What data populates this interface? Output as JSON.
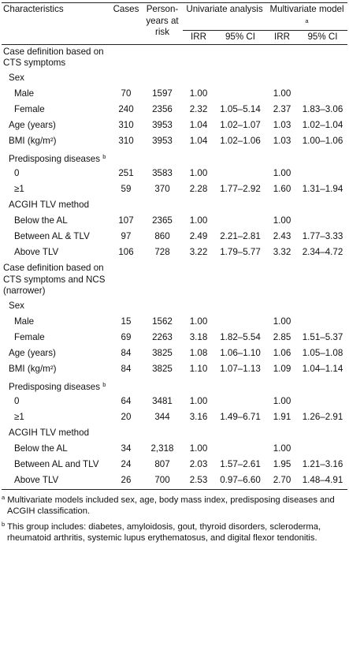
{
  "table": {
    "header": {
      "characteristics": "Characteristics",
      "cases": "Cases",
      "person_years": "Person-years at risk",
      "univariate": "Univariate analysis",
      "multivariate": "Multivariate model",
      "multivariate_note": "a",
      "irr_1": "IRR",
      "ci_1": "95% CI",
      "irr_2": "IRR",
      "ci_2": "95% CI"
    },
    "rows": [
      {
        "label": "Case definition based on CTS symptoms",
        "cells": [
          null,
          null,
          null,
          null,
          null,
          null
        ]
      },
      {
        "label": "Sex",
        "cells": [
          null,
          null,
          null,
          null,
          null,
          null
        ]
      },
      {
        "label": "Male",
        "cells": [
          "70",
          "1597",
          "1.00",
          null,
          "1.00",
          null
        ]
      },
      {
        "label": "Female",
        "cells": [
          "240",
          "2356",
          "2.32",
          "1.05–5.14",
          "2.37",
          "1.83–3.06"
        ]
      },
      {
        "label": "Age (years)",
        "cells": [
          "310",
          "3953",
          "1.04",
          "1.02–1.07",
          "1.03",
          "1.02–1.04"
        ]
      },
      {
        "label": "BMI (kg/m²)",
        "cells": [
          "310",
          "3953",
          "1.04",
          "1.02–1.06",
          "1.03",
          "1.00–1.06"
        ]
      },
      {
        "label": "Predisposing diseases",
        "note": "b",
        "cells": [
          null,
          null,
          null,
          null,
          null,
          null
        ]
      },
      {
        "label": "0",
        "cells": [
          "251",
          "3583",
          "1.00",
          null,
          "1.00",
          null
        ]
      },
      {
        "label": "≥1",
        "cells": [
          "59",
          "370",
          "2.28",
          "1.77–2.92",
          "1.60",
          "1.31–1.94"
        ]
      },
      {
        "label": "ACGIH TLV method",
        "cells": [
          null,
          null,
          null,
          null,
          null,
          null
        ]
      },
      {
        "label": "Below the AL",
        "cells": [
          "107",
          "2365",
          "1.00",
          null,
          "1.00",
          null
        ]
      },
      {
        "label": "Between AL & TLV",
        "cells": [
          "97",
          "860",
          "2.49",
          "2.21–2.81",
          "2.43",
          "1.77–3.33"
        ]
      },
      {
        "label": "Above TLV",
        "cells": [
          "106",
          "728",
          "3.22",
          "1.79–5.77",
          "3.32",
          "2.34–4.72"
        ]
      },
      {
        "label": "Case definition based on CTS symptoms and NCS (narrower)",
        "cells": [
          null,
          null,
          null,
          null,
          null,
          null
        ]
      },
      {
        "label": "Sex",
        "cells": [
          null,
          null,
          null,
          null,
          null,
          null
        ]
      },
      {
        "label": "Male",
        "cells": [
          "15",
          "1562",
          "1.00",
          null,
          "1.00",
          null
        ]
      },
      {
        "label": "Female",
        "cells": [
          "69",
          "2263",
          "3.18",
          "1.82–5.54",
          "2.85",
          "1.51–5.37"
        ]
      },
      {
        "label": "Age (years)",
        "cells": [
          "84",
          "3825",
          "1.08",
          "1.06–1.10",
          "1.06",
          "1.05–1.08"
        ]
      },
      {
        "label": "BMI (kg/m²)",
        "cells": [
          "84",
          "3825",
          "1.10",
          "1.07–1.13",
          "1.09",
          "1.04–1.14"
        ]
      },
      {
        "label": "Predisposing diseases",
        "note": "b",
        "cells": [
          null,
          null,
          null,
          null,
          null,
          null
        ]
      },
      {
        "label": "0",
        "cells": [
          "64",
          "3481",
          "1.00",
          null,
          "1.00",
          null
        ]
      },
      {
        "label": "≥1",
        "cells": [
          "20",
          "344",
          "3.16",
          "1.49–6.71",
          "1.91",
          "1.26–2.91"
        ]
      },
      {
        "label": "ACGIH TLV method",
        "cells": [
          null,
          null,
          null,
          null,
          null,
          null
        ]
      },
      {
        "label": "Below the AL",
        "cells": [
          "34",
          "2,318",
          "1.00",
          null,
          "1.00",
          null
        ]
      },
      {
        "label": "Between AL and TLV",
        "cells": [
          "24",
          "807",
          "2.03",
          "1.57–2.61",
          "1.95",
          "1.21–3.16"
        ]
      },
      {
        "label": "Above TLV",
        "cells": [
          "26",
          "700",
          "2.53",
          "0.97–6.60",
          "2.70",
          "1.48–4.91"
        ]
      }
    ]
  },
  "footnotes": [
    {
      "mark": "a",
      "text": "Multivariate models included sex, age, body mass index, predisposing diseases and ACGIH classification."
    },
    {
      "mark": "b",
      "text": "This group includes: diabetes, amyloidosis, gout, thyroid disorders, scleroderma, rheumatoid arthritis, systemic lupus erythematosus, and digital flexor tendonitis."
    }
  ]
}
